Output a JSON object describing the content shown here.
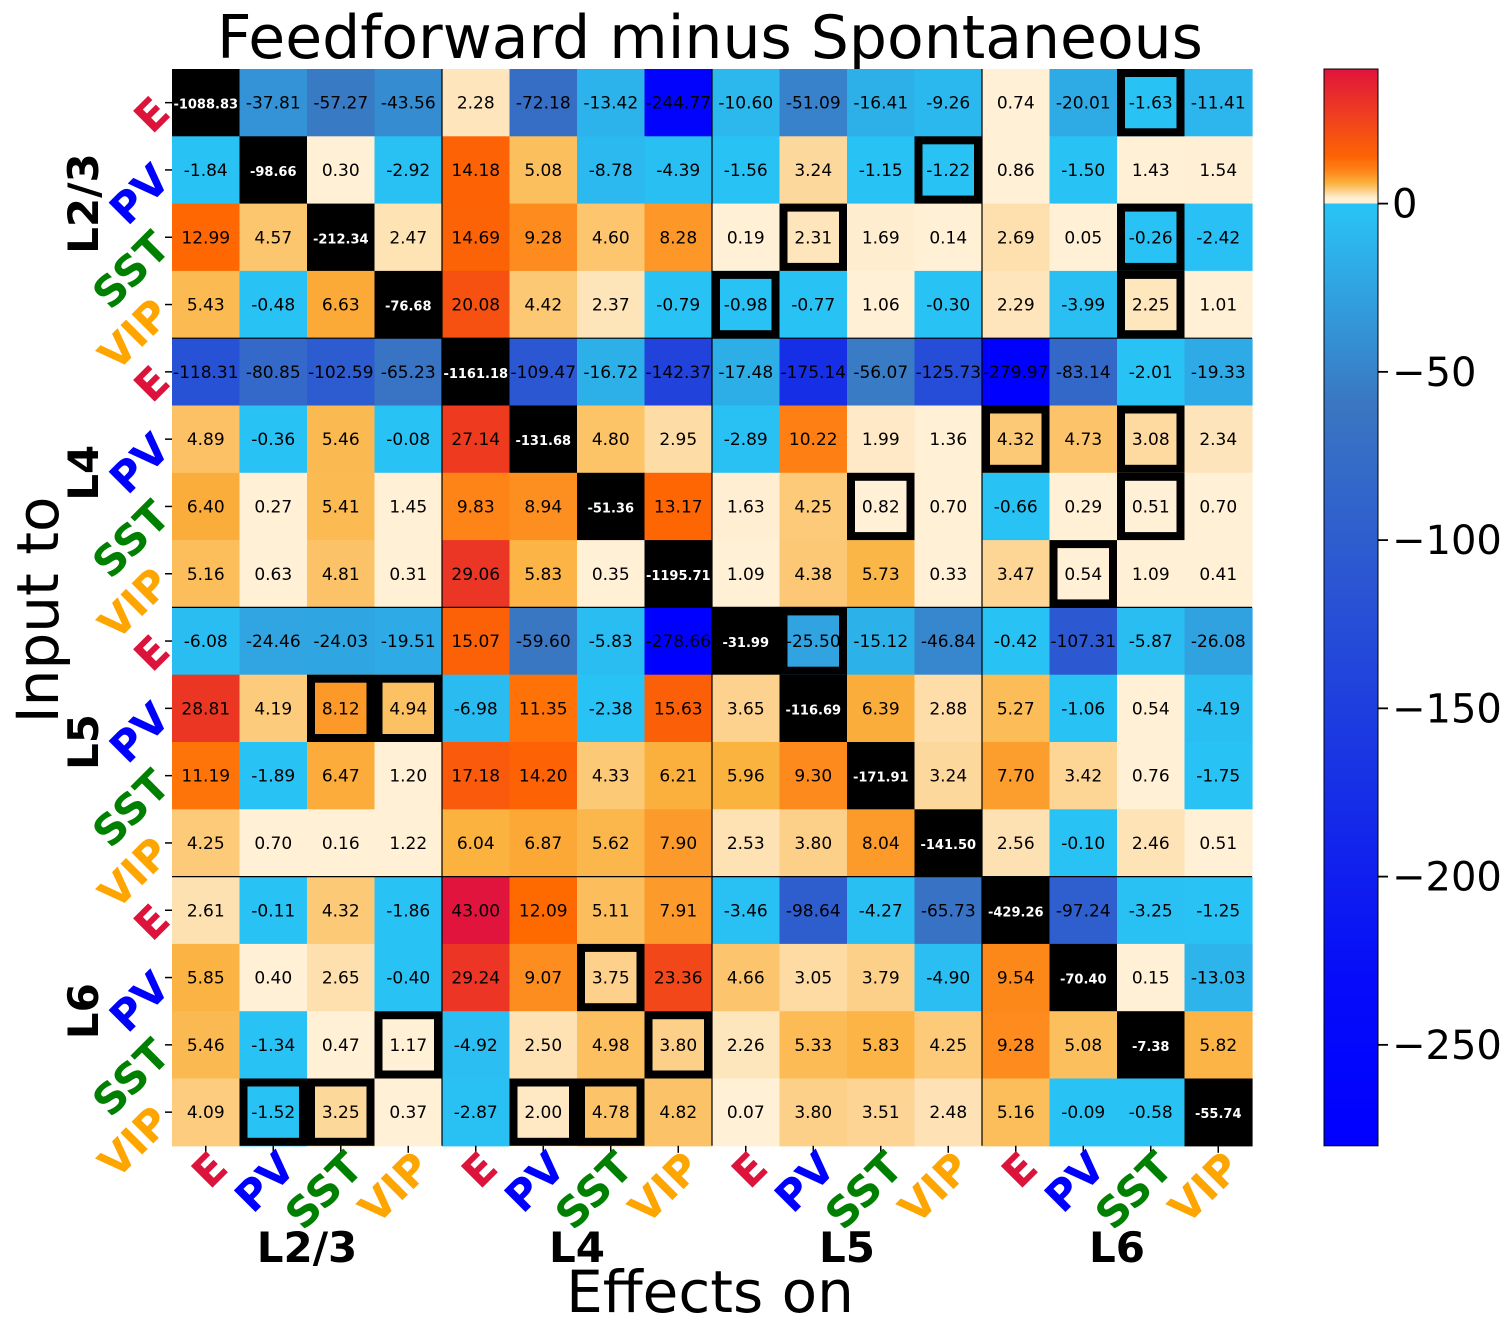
{
  "chart_data": {
    "type": "heatmap",
    "title": "Feedforward minus Spontaneous",
    "xlabel": "Effects on",
    "ylabel": "Input to",
    "layers": [
      "L2/3",
      "L4",
      "L5",
      "L6"
    ],
    "cell_types": [
      "E",
      "PV",
      "SST",
      "VIP"
    ],
    "cell_type_colors": {
      "E": "#dc143c",
      "PV": "#0000ff",
      "SST": "#008000",
      "VIP": "#ffa500"
    },
    "values": [
      [
        -1088.83,
        -37.81,
        -57.27,
        -43.56,
        2.28,
        -72.18,
        -13.42,
        -244.77,
        -10.6,
        -51.09,
        -16.41,
        -9.26,
        0.74,
        -20.01,
        -1.63,
        -11.41
      ],
      [
        -1.84,
        -98.66,
        0.3,
        -2.92,
        14.18,
        5.08,
        -8.78,
        -4.39,
        -1.56,
        3.24,
        -1.15,
        -1.22,
        0.86,
        -1.5,
        1.43,
        1.54
      ],
      [
        12.99,
        4.57,
        -212.34,
        2.47,
        14.69,
        9.28,
        4.6,
        8.28,
        0.19,
        2.31,
        1.69,
        0.14,
        2.69,
        0.05,
        -0.26,
        -2.42
      ],
      [
        5.43,
        -0.48,
        6.63,
        -76.68,
        20.08,
        4.42,
        2.37,
        -0.79,
        -0.98,
        -0.77,
        1.06,
        -0.3,
        2.29,
        -3.99,
        2.25,
        1.01
      ],
      [
        -118.31,
        -80.85,
        -102.59,
        -65.23,
        -1161.18,
        -109.47,
        -16.72,
        -142.37,
        -17.48,
        -175.14,
        -56.07,
        -125.73,
        -279.97,
        -83.14,
        -2.01,
        -19.33
      ],
      [
        4.89,
        -0.36,
        5.46,
        -0.08,
        27.14,
        -131.68,
        4.8,
        2.95,
        -2.89,
        10.22,
        1.99,
        1.36,
        4.32,
        4.73,
        3.08,
        2.34
      ],
      [
        6.4,
        0.27,
        5.41,
        1.45,
        9.83,
        8.94,
        -51.36,
        13.17,
        1.63,
        4.25,
        0.82,
        0.7,
        -0.66,
        0.29,
        0.51,
        0.7
      ],
      [
        5.16,
        0.63,
        4.81,
        0.31,
        29.06,
        5.83,
        0.35,
        -1195.71,
        1.09,
        4.38,
        5.73,
        0.33,
        3.47,
        0.54,
        1.09,
        0.41
      ],
      [
        -6.08,
        -24.46,
        -24.03,
        -19.51,
        15.07,
        -59.6,
        -5.83,
        -278.66,
        -31.99,
        -25.5,
        -15.12,
        -46.84,
        -0.42,
        -107.31,
        -5.87,
        -26.08
      ],
      [
        28.81,
        4.19,
        8.12,
        4.94,
        -6.98,
        11.35,
        -2.38,
        15.63,
        3.65,
        -116.69,
        6.39,
        2.88,
        5.27,
        -1.06,
        0.54,
        -4.19
      ],
      [
        11.19,
        -1.89,
        6.47,
        1.2,
        17.18,
        14.2,
        4.33,
        6.21,
        5.96,
        9.3,
        -171.91,
        3.24,
        7.7,
        3.42,
        0.76,
        -1.75
      ],
      [
        4.25,
        0.7,
        0.16,
        1.22,
        6.04,
        6.87,
        5.62,
        7.9,
        2.53,
        3.8,
        8.04,
        -141.5,
        2.56,
        -0.1,
        2.46,
        0.51
      ],
      [
        2.61,
        -0.11,
        4.32,
        -1.86,
        43.0,
        12.09,
        5.11,
        7.91,
        -3.46,
        -98.64,
        -4.27,
        -65.73,
        -429.26,
        -97.24,
        -3.25,
        -1.25
      ],
      [
        5.85,
        0.4,
        2.65,
        -0.4,
        29.24,
        9.07,
        3.75,
        23.36,
        4.66,
        3.05,
        3.79,
        -4.9,
        9.54,
        -70.4,
        0.15,
        -13.03
      ],
      [
        5.46,
        -1.34,
        0.47,
        1.17,
        -4.92,
        2.5,
        4.98,
        3.8,
        2.26,
        5.33,
        5.83,
        4.25,
        9.28,
        5.08,
        -7.38,
        5.82
      ],
      [
        4.09,
        -1.52,
        3.25,
        0.37,
        -2.87,
        2.0,
        4.78,
        4.82,
        0.07,
        3.8,
        3.51,
        2.48,
        5.16,
        -0.09,
        -0.58,
        -55.74
      ]
    ],
    "highlighted_cells": [
      [
        0,
        14
      ],
      [
        1,
        11
      ],
      [
        2,
        9
      ],
      [
        2,
        14
      ],
      [
        3,
        8
      ],
      [
        3,
        14
      ],
      [
        5,
        12
      ],
      [
        5,
        14
      ],
      [
        6,
        10
      ],
      [
        6,
        14
      ],
      [
        7,
        13
      ],
      [
        8,
        9
      ],
      [
        9,
        2
      ],
      [
        9,
        3
      ],
      [
        13,
        6
      ],
      [
        14,
        3
      ],
      [
        14,
        7
      ],
      [
        15,
        1
      ],
      [
        15,
        2
      ],
      [
        15,
        5
      ],
      [
        15,
        6
      ]
    ],
    "colorbar": {
      "ticks": [
        0,
        -50,
        -100,
        -150,
        -200,
        -250
      ],
      "tick_labels": [
        "0",
        "−50",
        "−100",
        "−150",
        "−200",
        "−250"
      ],
      "vmin": -280,
      "vmax": 40
    },
    "colors": {
      "diagonal": "#000000",
      "highlight_border": "#000000",
      "neg_strong": "#0000ff",
      "neg_mid": "#3a76c2",
      "neg_weak": "#29c2f5",
      "pos_weak": "#fff0d6",
      "pos_mid": "#fbb23f",
      "pos_strong": "#ff6a00",
      "pos_max": "#e0143c"
    }
  }
}
